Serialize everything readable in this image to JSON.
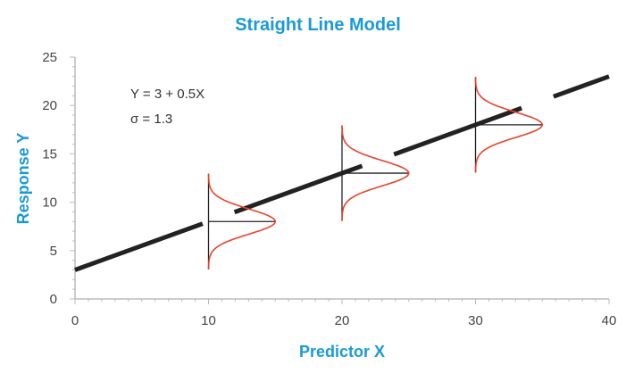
{
  "chart_data": {
    "type": "line",
    "title": "Straight Line Model",
    "xlabel": "Predictor X",
    "ylabel": "Response Y",
    "xlim": [
      0,
      40
    ],
    "ylim": [
      0,
      25
    ],
    "x_ticks": [
      "0",
      "10",
      "20",
      "30",
      "40"
    ],
    "y_ticks": [
      "0",
      "5",
      "10",
      "15",
      "20",
      "25"
    ],
    "line": {
      "intercept": 3,
      "slope": 0.5,
      "style": "dashed",
      "color": "#222222"
    },
    "annotations": [
      "Y = 3 + 0.5X",
      "σ = 1.3"
    ],
    "sigma": 1.3,
    "distributions": [
      {
        "x": 10,
        "mean": 8
      },
      {
        "x": 20,
        "mean": 13
      },
      {
        "x": 30,
        "mean": 18
      }
    ],
    "curve_color": "#e8432a",
    "grid": false
  }
}
